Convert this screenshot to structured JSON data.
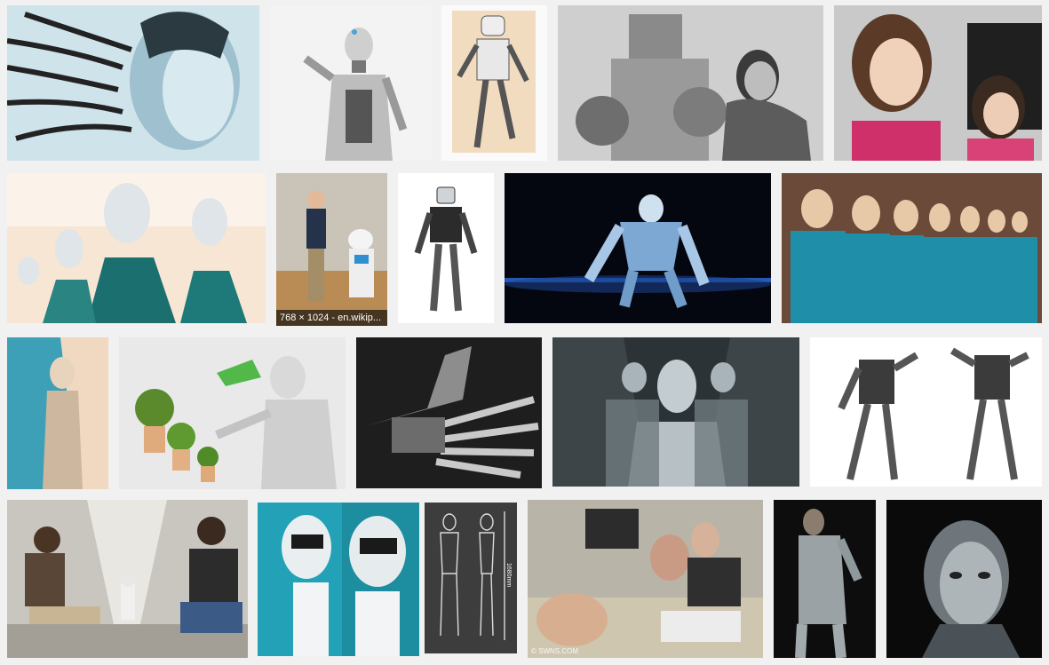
{
  "results": [
    {
      "row": 1,
      "subject": "robot head with cables",
      "icon": "image-icon"
    },
    {
      "row": 1,
      "subject": "female robot with butterfly",
      "icon": "image-icon"
    },
    {
      "row": 1,
      "subject": "robot sketch drawing",
      "icon": "image-icon"
    },
    {
      "row": 1,
      "subject": "vintage robot with woman",
      "icon": "image-icon"
    },
    {
      "row": 1,
      "subject": "android woman",
      "icon": "image-icon"
    },
    {
      "row": 2,
      "subject": "rows of robot heads",
      "icon": "image-icon"
    },
    {
      "row": 2,
      "subject": "man shaking hands with robot",
      "caption": "768 × 1024 - en.wikip...",
      "icon": "image-icon"
    },
    {
      "row": 2,
      "subject": "humanoid robot",
      "icon": "image-icon"
    },
    {
      "row": 2,
      "subject": "blue robot crouching",
      "icon": "image-icon"
    },
    {
      "row": 2,
      "subject": "female androids in line",
      "icon": "image-icon"
    },
    {
      "row": 3,
      "subject": "female robot figure",
      "icon": "image-icon"
    },
    {
      "row": 3,
      "subject": "robot watering plants",
      "icon": "image-icon"
    },
    {
      "row": 3,
      "subject": "robotic hand",
      "icon": "image-icon"
    },
    {
      "row": 3,
      "subject": "robots in corridor",
      "icon": "image-icon"
    },
    {
      "row": 3,
      "subject": "two walking robots",
      "icon": "image-icon"
    },
    {
      "row": 4,
      "subject": "people with small robot in hallway",
      "icon": "image-icon"
    },
    {
      "row": 4,
      "subject": "white robot heads",
      "icon": "image-icon"
    },
    {
      "row": 4,
      "subject": "robot blueprint",
      "measure": "1680mm",
      "icon": "image-icon"
    },
    {
      "row": 4,
      "subject": "robot heads in lab",
      "watermark": "© SWNS.COM",
      "icon": "image-icon"
    },
    {
      "row": 4,
      "subject": "body painted robot costume",
      "icon": "image-icon"
    },
    {
      "row": 4,
      "subject": "cyborg woman",
      "icon": "image-icon"
    }
  ],
  "colors": {
    "background": "#f1f1f1",
    "caption_bg": "#000000"
  }
}
